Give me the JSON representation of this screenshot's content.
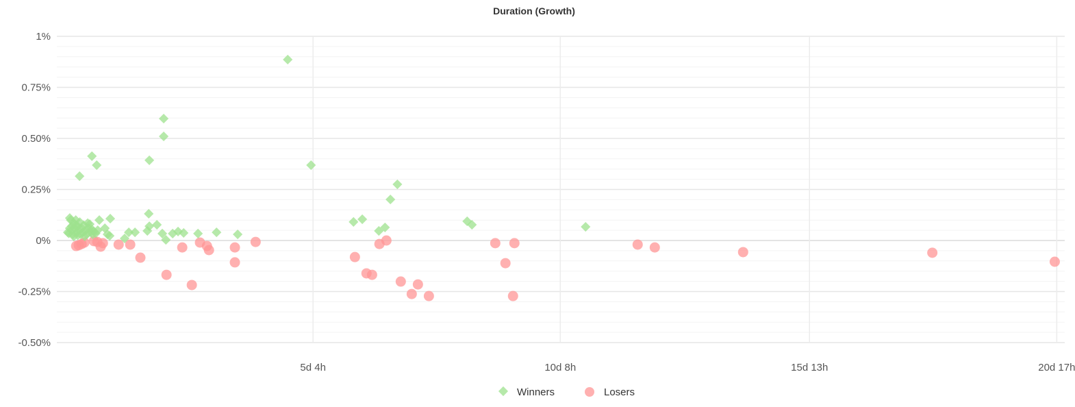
{
  "chart_data": {
    "type": "scatter",
    "title": "Duration (Growth)",
    "xlabel": "",
    "ylabel": "",
    "x_unit": "hours",
    "y_unit": "percent",
    "xlim": [
      -4.5,
      501
    ],
    "ylim": [
      -0.5,
      1.0
    ],
    "x_ticks": [
      {
        "value": 124,
        "label": "5d 4h"
      },
      {
        "value": 248,
        "label": "10d 8h"
      },
      {
        "value": 373,
        "label": "15d 13h"
      },
      {
        "value": 497,
        "label": "20d 17h"
      }
    ],
    "y_ticks": [
      {
        "value": 1.0,
        "label": "1%"
      },
      {
        "value": 0.75,
        "label": "0.75%"
      },
      {
        "value": 0.5,
        "label": "0.50%"
      },
      {
        "value": 0.25,
        "label": "0.25%"
      },
      {
        "value": 0,
        "label": "0%"
      },
      {
        "value": -0.25,
        "label": "-0.25%"
      },
      {
        "value": -0.5,
        "label": "-0.50%"
      }
    ],
    "grid": true,
    "legend_position": "bottom-center",
    "series": [
      {
        "name": "Winners",
        "marker": "diamond",
        "color": "#9ee28e",
        "points": [
          [
            111.3,
            0.886
          ],
          [
            49.1,
            0.597
          ],
          [
            49.1,
            0.51
          ],
          [
            41.9,
            0.393
          ],
          [
            13.1,
            0.413
          ],
          [
            15.5,
            0.369
          ],
          [
            6.9,
            0.315
          ],
          [
            123,
            0.369
          ],
          [
            166.3,
            0.275
          ],
          [
            162.8,
            0.201
          ],
          [
            160.1,
            0.064
          ],
          [
            157,
            0.047
          ],
          [
            148.7,
            0.104
          ],
          [
            144.3,
            0.091
          ],
          [
            201.3,
            0.094
          ],
          [
            203.7,
            0.077
          ],
          [
            260.7,
            0.067
          ],
          [
            41.6,
            0.131
          ],
          [
            41.9,
            0.07
          ],
          [
            40.9,
            0.047
          ],
          [
            45.7,
            0.077
          ],
          [
            48.4,
            0.034
          ],
          [
            50.2,
            0.003
          ],
          [
            53.6,
            0.034
          ],
          [
            56.3,
            0.044
          ],
          [
            59.1,
            0.037
          ],
          [
            66.3,
            0.034
          ],
          [
            75.6,
            0.04
          ],
          [
            86.2,
            0.03
          ],
          [
            29.5,
            0.01
          ],
          [
            31.6,
            0.04
          ],
          [
            34.7,
            0.04
          ],
          [
            22.3,
            0.107
          ],
          [
            16.8,
            0.1
          ],
          [
            19.6,
            0.06
          ],
          [
            20.9,
            0.03
          ],
          [
            22,
            0.023
          ],
          [
            1,
            0.04
          ],
          [
            1.5,
            0.035
          ],
          [
            2,
            0.11
          ],
          [
            2.5,
            0.1
          ],
          [
            3,
            0.07
          ],
          [
            3,
            0.05
          ],
          [
            3.5,
            0.03
          ],
          [
            4,
            0.085
          ],
          [
            4.5,
            0.06
          ],
          [
            5,
            0.1
          ],
          [
            5.5,
            0.04
          ],
          [
            6,
            0.07
          ],
          [
            6.5,
            0.05
          ],
          [
            7,
            0.09
          ],
          [
            7.5,
            0.03
          ],
          [
            8,
            0.06
          ],
          [
            8.5,
            0.04
          ],
          [
            9,
            0.075
          ],
          [
            10,
            0.05
          ],
          [
            10.5,
            0.03
          ],
          [
            11,
            0.085
          ],
          [
            11.5,
            0.06
          ],
          [
            12,
            0.08
          ],
          [
            12.5,
            0.04
          ],
          [
            13,
            0.055
          ],
          [
            13.5,
            0.03
          ],
          [
            14,
            0.045
          ],
          [
            15,
            0.035
          ],
          [
            16,
            0.05
          ],
          [
            4,
            0.02
          ],
          [
            6,
            0.025
          ],
          [
            9.5,
            0.02
          ],
          [
            2,
            0.06
          ],
          [
            5,
            0.075
          ]
        ]
      },
      {
        "name": "Losers",
        "marker": "circle",
        "color": "#ff9696",
        "points": [
          [
            5.2,
            -0.027
          ],
          [
            6.5,
            -0.023
          ],
          [
            7.9,
            -0.017
          ],
          [
            9.3,
            -0.01
          ],
          [
            14.1,
            -0.003
          ],
          [
            15.8,
            -0.007
          ],
          [
            17.5,
            -0.03
          ],
          [
            18.6,
            -0.013
          ],
          [
            26.5,
            -0.02
          ],
          [
            32.3,
            -0.02
          ],
          [
            37.4,
            -0.084
          ],
          [
            50.5,
            -0.168
          ],
          [
            58.4,
            -0.034
          ],
          [
            63.2,
            -0.218
          ],
          [
            67.3,
            -0.01
          ],
          [
            70.8,
            -0.027
          ],
          [
            71.8,
            -0.047
          ],
          [
            84.8,
            -0.034
          ],
          [
            84.8,
            -0.107
          ],
          [
            95.2,
            -0.007
          ],
          [
            145,
            -0.081
          ],
          [
            150.8,
            -0.161
          ],
          [
            153.6,
            -0.168
          ],
          [
            157.3,
            -0.017
          ],
          [
            160.8,
            0.0
          ],
          [
            168,
            -0.201
          ],
          [
            173.5,
            -0.262
          ],
          [
            176.6,
            -0.215
          ],
          [
            182.1,
            -0.272
          ],
          [
            215.4,
            -0.013
          ],
          [
            220.5,
            -0.111
          ],
          [
            224.3,
            -0.272
          ],
          [
            225,
            -0.013
          ],
          [
            286.8,
            -0.02
          ],
          [
            295.4,
            -0.034
          ],
          [
            339.7,
            -0.057
          ],
          [
            434.6,
            -0.06
          ],
          [
            496,
            -0.104
          ]
        ]
      }
    ]
  }
}
